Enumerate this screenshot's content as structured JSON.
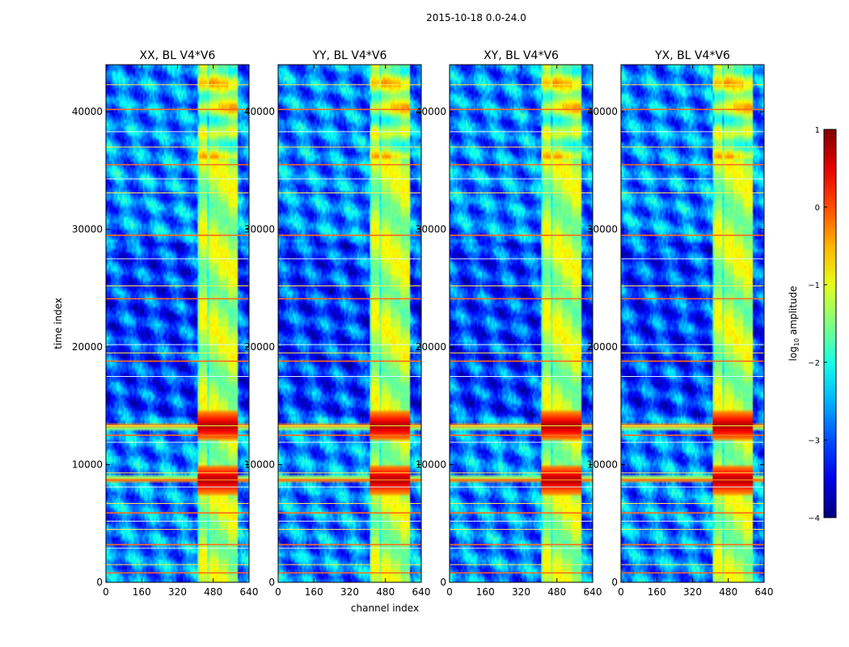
{
  "chart_data": {
    "type": "heatmap",
    "suptitle": "2015-10-18 0.0-24.0",
    "xlabel": "channel index",
    "ylabel": "time index",
    "xlim": [
      0,
      640
    ],
    "ylim": [
      0,
      44000
    ],
    "xticks": [
      0,
      160,
      320,
      480,
      640
    ],
    "yticks": [
      0,
      10000,
      20000,
      30000,
      40000
    ],
    "panels": [
      {
        "title": "XX, BL V4*V6",
        "has_ylabel": true,
        "variant": 0
      },
      {
        "title": "YY, BL V4*V6",
        "has_ylabel": false,
        "variant": 1
      },
      {
        "title": "XY, BL V4*V6",
        "has_ylabel": false,
        "variant": 2
      },
      {
        "title": "YX, BL V4*V6",
        "has_ylabel": false,
        "variant": 3
      }
    ],
    "colorbar": {
      "label": "log10 amplitude",
      "label_base": "log",
      "label_sub": "10",
      "label_rest": " amplitude",
      "range": [
        -4,
        1
      ],
      "ticks": [
        {
          "value": 1,
          "label": "1"
        },
        {
          "value": 0,
          "label": "0"
        },
        {
          "value": -1,
          "label": "−1"
        },
        {
          "value": -2,
          "label": "−2"
        },
        {
          "value": -3,
          "label": "−3"
        },
        {
          "value": -4,
          "label": "−4"
        }
      ],
      "colormap": "jet"
    },
    "features": {
      "rfi_channel_band": [
        410,
        590
      ],
      "strong_events_time": [
        8700,
        13300
      ],
      "horizontal_lines_time": [
        800,
        1500,
        2900,
        3200,
        4500,
        5200,
        5900,
        6700,
        8100,
        8700,
        9300,
        11900,
        12500,
        13300,
        17500,
        18800,
        19500,
        20200,
        24100,
        25200,
        27500,
        29500,
        33100,
        34300,
        35500,
        37000,
        38300,
        40200,
        42300
      ]
    }
  }
}
